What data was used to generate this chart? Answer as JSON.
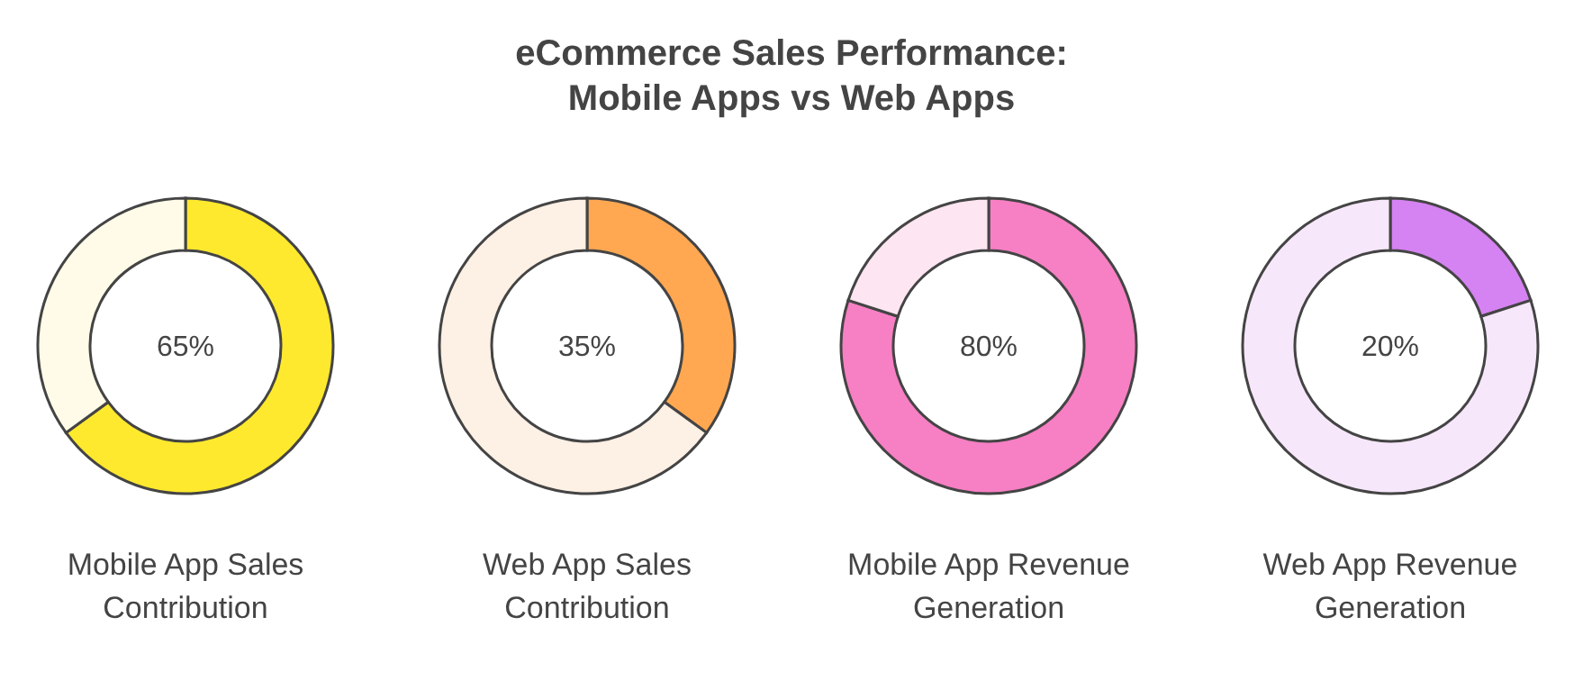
{
  "chart_data": [
    {
      "type": "donut",
      "title": "eCommerce Sales Performance: Mobile Apps vs Web Apps",
      "xlabel": "Mobile App Sales Contribution",
      "categories": [
        null,
        null
      ],
      "values": [
        65,
        35
      ],
      "colors": [
        "#ffe92e",
        "#fffbe8"
      ],
      "annotations": [
        "65%"
      ]
    },
    {
      "type": "donut",
      "xlabel": "Web App Sales Contribution",
      "categories": [
        null,
        null
      ],
      "values": [
        35,
        65
      ],
      "colors": [
        "#ffa851",
        "#fdf0e4"
      ],
      "annotations": [
        "35%"
      ]
    },
    {
      "type": "donut",
      "xlabel": "Mobile App Revenue Generation",
      "categories": [
        null,
        null
      ],
      "values": [
        80,
        20
      ],
      "colors": [
        "#f77fc4",
        "#fde5f1"
      ],
      "annotations": [
        "80%"
      ]
    },
    {
      "type": "donut",
      "xlabel": "Web App Revenue Generation",
      "categories": [
        null,
        null
      ],
      "values": [
        20,
        80
      ],
      "colors": [
        "#d582f2",
        "#f7e7fb"
      ],
      "annotations": [
        "20%"
      ]
    }
  ]
}
